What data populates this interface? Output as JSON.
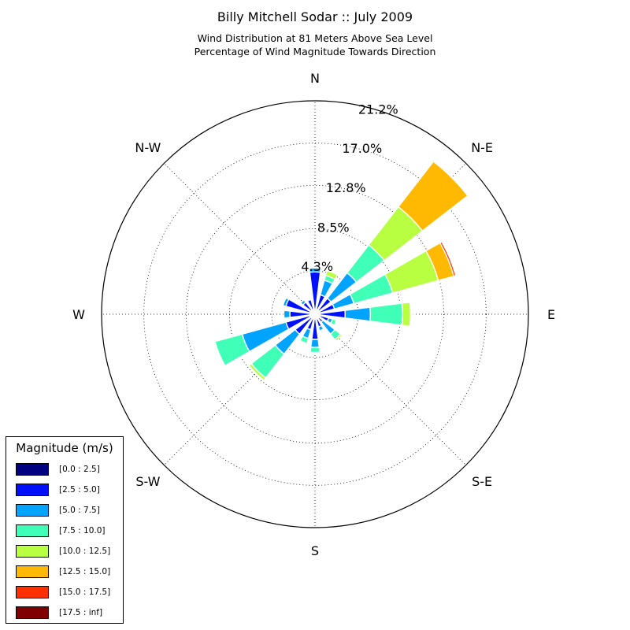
{
  "title": "Billy Mitchell Sodar :: July 2009",
  "subtitle_line1": "Wind Distribution at 81 Meters Above Sea Level",
  "subtitle_line2": "Percentage of Wind Magnitude Towards Direction",
  "legend": {
    "title": "Magnitude (m/s)",
    "items": [
      {
        "label": "[0.0 : 2.5]",
        "color": "#000080"
      },
      {
        "label": "[2.5 : 5.0]",
        "color": "#0010ff"
      },
      {
        "label": "[5.0 : 7.5]",
        "color": "#00a4ff"
      },
      {
        "label": "[7.5 : 10.0]",
        "color": "#40ffb7"
      },
      {
        "label": "[10.0 : 12.5]",
        "color": "#b7ff40"
      },
      {
        "label": "[12.5 : 15.0]",
        "color": "#ffb900"
      },
      {
        "label": "[15.0 : 17.5]",
        "color": "#ff3000"
      },
      {
        "label": "[17.5 : inf]",
        "color": "#800000"
      }
    ]
  },
  "chart_data": {
    "type": "windrose",
    "title": "Billy Mitchell Sodar :: July 2009",
    "subtitle": "Wind Distribution at 81 Meters Above Sea Level / Percentage of Wind Magnitude Towards Direction",
    "radial_unit": "%",
    "rmax": 21.2,
    "radial_ticks": [
      4.3,
      8.5,
      12.8,
      17.0,
      21.2
    ],
    "radial_tick_labels": [
      "4.3%",
      "8.5%",
      "12.8%",
      "17.0%",
      "21.2%"
    ],
    "direction_labels": [
      {
        "label": "N",
        "angle": 0
      },
      {
        "label": "N-E",
        "angle": 45
      },
      {
        "label": "E",
        "angle": 90
      },
      {
        "label": "S-E",
        "angle": 135
      },
      {
        "label": "S",
        "angle": 180
      },
      {
        "label": "S-W",
        "angle": 225
      },
      {
        "label": "W",
        "angle": 270
      },
      {
        "label": "N-W",
        "angle": 315
      }
    ],
    "grid": true,
    "legend_position": "bottom-left",
    "bins": [
      "[0.0 : 2.5]",
      "[2.5 : 5.0]",
      "[5.0 : 7.5]",
      "[7.5 : 10.0]",
      "[10.0 : 12.5]",
      "[12.5 : 15.0]",
      "[15.0 : 17.5]",
      "[17.5 : inf]"
    ],
    "directions": [
      {
        "angle": 0,
        "cumulative": [
          0.5,
          4.2,
          4.6
        ]
      },
      {
        "angle": 22.5,
        "cumulative": [
          0.5,
          2.0,
          3.5,
          4.0,
          4.5
        ]
      },
      {
        "angle": 45,
        "cumulative": [
          0.5,
          2.0,
          5.2,
          8.7,
          13.5,
          19.2
        ]
      },
      {
        "angle": 67.5,
        "cumulative": [
          0.5,
          2.0,
          4.0,
          8.0,
          12.7,
          14.3,
          14.5
        ]
      },
      {
        "angle": 90,
        "cumulative": [
          0.5,
          3.0,
          5.5,
          8.7,
          9.5,
          9.6,
          9.7
        ]
      },
      {
        "angle": 112.5,
        "cumulative": [
          0.5,
          1.4,
          1.8,
          2.2
        ]
      },
      {
        "angle": 135,
        "cumulative": [
          0.5,
          1.0,
          2.5,
          3.2,
          3.4
        ]
      },
      {
        "angle": 157.5,
        "cumulative": [
          0.5,
          1.3,
          1.7
        ]
      },
      {
        "angle": 180,
        "cumulative": [
          0.5,
          2.5,
          3.3,
          3.8
        ]
      },
      {
        "angle": 202.5,
        "cumulative": [
          0.5,
          1.6,
          2.5,
          3.0
        ]
      },
      {
        "angle": 225,
        "cumulative": [
          0.5,
          2.5,
          5.0,
          8.0,
          8.3
        ]
      },
      {
        "angle": 247.5,
        "cumulative": [
          0.5,
          3.0,
          7.5,
          10.3
        ]
      },
      {
        "angle": 270,
        "cumulative": [
          0.5,
          2.5,
          3.1
        ]
      },
      {
        "angle": 292.5,
        "cumulative": [
          0.5,
          3.0,
          3.3
        ]
      },
      {
        "angle": 315,
        "cumulative": [
          0.5,
          1.5,
          1.8
        ]
      },
      {
        "angle": 337.5,
        "cumulative": [
          0.5,
          1.5
        ]
      }
    ]
  }
}
